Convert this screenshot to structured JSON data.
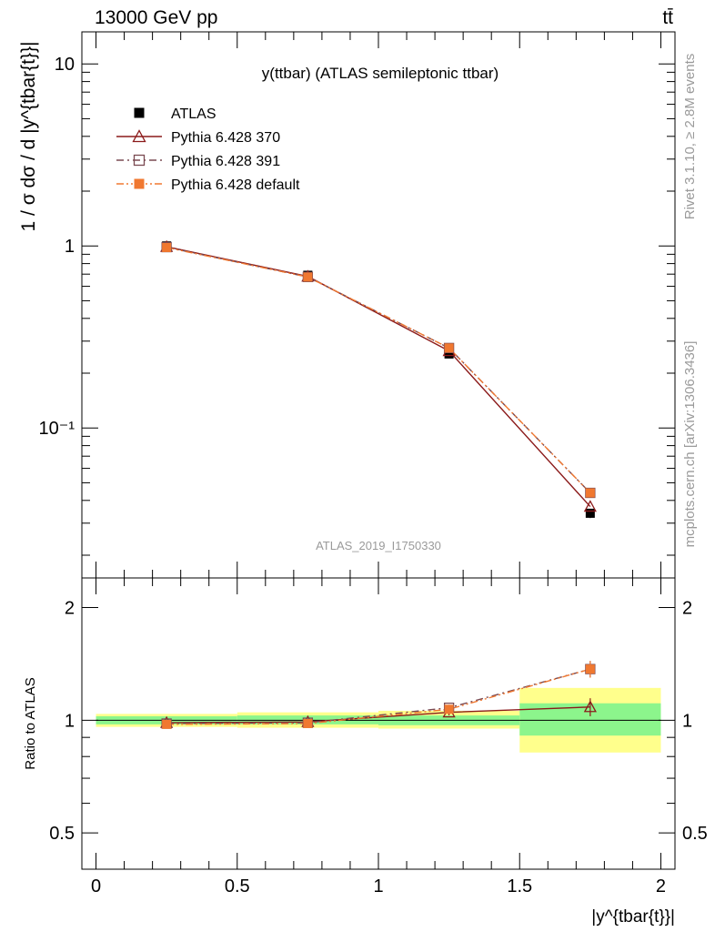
{
  "header": {
    "energy": "13000 GeV pp",
    "process": "tt̄"
  },
  "side_labels": {
    "rivet": "Rivet 3.1.10, ≥ 2.8M events",
    "mcplots": "mcplots.cern.ch [arXiv:1306.3436]"
  },
  "chart_data": [
    {
      "type": "scatter",
      "title": "y(ttbar) (ATLAS semileptonic ttbar)",
      "watermark": "ATLAS_2019_I1750330",
      "ylabel": "1 / σ dσ / d |y^{tbar{t}}|",
      "yscale": "log",
      "ylim": [
        0.015,
        15
      ],
      "xlim": [
        -0.05,
        2.05
      ],
      "ytick_labels": [
        "10",
        "1",
        "10⁻¹"
      ],
      "legend_position": "top-left",
      "series": [
        {
          "name": "ATLAS",
          "color": "#000000",
          "marker": "filled-square",
          "x": [
            0.25,
            0.75,
            1.25,
            1.75
          ],
          "y": [
            1.0,
            0.69,
            0.255,
            0.034
          ],
          "yerr": [
            0.04,
            0.025,
            0.01,
            0.002
          ]
        },
        {
          "name": "Pythia 6.428 370",
          "color": "#8b1a1a",
          "marker": "open-triangle",
          "line": "solid",
          "x": [
            0.25,
            0.75,
            1.25,
            1.75
          ],
          "y": [
            0.99,
            0.68,
            0.265,
            0.037
          ]
        },
        {
          "name": "Pythia 6.428 391",
          "color": "#7a4a52",
          "marker": "open-square",
          "line": "dash-dot",
          "x": [
            0.25,
            0.75,
            1.25,
            1.75
          ],
          "y": [
            0.985,
            0.675,
            0.275,
            0.044
          ]
        },
        {
          "name": "Pythia 6.428 default",
          "color": "#f07830",
          "marker": "filled-square",
          "line": "dash-dot-dot",
          "x": [
            0.25,
            0.75,
            1.25,
            1.75
          ],
          "y": [
            0.98,
            0.675,
            0.275,
            0.044
          ]
        }
      ]
    },
    {
      "type": "scatter",
      "ylabel": "Ratio to ATLAS",
      "xlabel": "|y^{tbar{t}}|",
      "ylim": [
        0.4,
        2.4
      ],
      "yscale": "log",
      "xlim": [
        -0.05,
        2.05
      ],
      "xtick_labels": [
        "0",
        "0.5",
        "1",
        "1.5",
        "2"
      ],
      "ytick_labels": [
        "2",
        "1",
        "0.5"
      ],
      "bands": [
        {
          "xmin": 0.0,
          "xmax": 0.5,
          "green": [
            0.975,
            1.025
          ],
          "yellow": [
            0.96,
            1.04
          ]
        },
        {
          "xmin": 0.5,
          "xmax": 1.0,
          "green": [
            0.975,
            1.03
          ],
          "yellow": [
            0.955,
            1.05
          ]
        },
        {
          "xmin": 1.0,
          "xmax": 1.5,
          "green": [
            0.97,
            1.03
          ],
          "yellow": [
            0.95,
            1.06
          ]
        },
        {
          "xmin": 1.5,
          "xmax": 2.0,
          "green": [
            0.91,
            1.11
          ],
          "yellow": [
            0.82,
            1.22
          ]
        }
      ],
      "series": [
        {
          "name": "Pythia 6.428 370",
          "x": [
            0.25,
            0.75,
            1.25,
            1.75
          ],
          "y": [
            0.985,
            0.99,
            1.05,
            1.085
          ],
          "yerr": [
            0.01,
            0.01,
            0.02,
            0.06
          ]
        },
        {
          "name": "Pythia 6.428 391",
          "x": [
            0.25,
            0.75,
            1.25,
            1.75
          ],
          "y": [
            0.98,
            0.985,
            1.08,
            1.37
          ],
          "yerr": [
            0.01,
            0.01,
            0.02,
            0.07
          ]
        },
        {
          "name": "Pythia 6.428 default",
          "x": [
            0.25,
            0.75,
            1.25,
            1.75
          ],
          "y": [
            0.975,
            0.98,
            1.07,
            1.37
          ],
          "yerr": [
            0.01,
            0.01,
            0.02,
            0.07
          ]
        }
      ]
    }
  ]
}
